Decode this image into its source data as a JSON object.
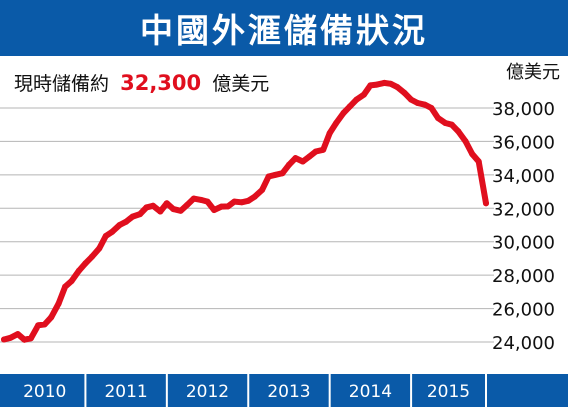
{
  "colors": {
    "title_bar": "#0a5aa8",
    "axis_bar": "#0a5aa8",
    "line": "#e00f1e",
    "highlight": "#e00f1e",
    "grid": "#b5b5b5"
  },
  "chart_data": {
    "type": "line",
    "title": "中國外滙儲備狀況",
    "subtitle": {
      "prefix": "現時儲備約",
      "value": "32,300",
      "suffix": "億美元"
    },
    "y_unit": "億美元",
    "ylim": [
      22500,
      40500
    ],
    "y_ticks": [
      "38,000",
      "36,000",
      "34,000",
      "32,000",
      "30,000",
      "28,000",
      "26,000",
      "24,000"
    ],
    "y_tick_values": [
      38000,
      36000,
      34000,
      32000,
      30000,
      28000,
      26000,
      24000
    ],
    "x_labels": [
      "2010",
      "2011",
      "2012",
      "2013",
      "2014",
      "2015"
    ],
    "x_range": [
      2010.0,
      2015.92
    ],
    "grid": "horizontal",
    "series": [
      {
        "x": [
          2010.0,
          2010.08,
          2010.17,
          2010.25,
          2010.33,
          2010.42,
          2010.5,
          2010.58,
          2010.67,
          2010.75,
          2010.83,
          2010.92,
          2011.0,
          2011.08,
          2011.17,
          2011.25,
          2011.33,
          2011.42,
          2011.5,
          2011.58,
          2011.67,
          2011.75,
          2011.83,
          2011.92,
          2012.0,
          2012.08,
          2012.17,
          2012.25,
          2012.33,
          2012.42,
          2012.5,
          2012.58,
          2012.67,
          2012.75,
          2012.83,
          2012.92,
          2013.0,
          2013.08,
          2013.17,
          2013.25,
          2013.33,
          2013.42,
          2013.5,
          2013.58,
          2013.67,
          2013.75,
          2013.83,
          2013.92,
          2014.0,
          2014.08,
          2014.17,
          2014.25,
          2014.33,
          2014.42,
          2014.5,
          2014.58,
          2014.67,
          2014.75,
          2014.83,
          2014.92,
          2015.0,
          2015.08,
          2015.17,
          2015.25,
          2015.33,
          2015.42,
          2015.5,
          2015.58,
          2015.67,
          2015.75,
          2015.83,
          2015.92
        ],
        "values": [
          24150,
          24250,
          24470,
          24140,
          24220,
          25000,
          25050,
          25480,
          26300,
          27300,
          27650,
          28260,
          28700,
          29100,
          29600,
          30340,
          30600,
          31000,
          31200,
          31500,
          31650,
          32050,
          32150,
          31810,
          32300,
          31950,
          31850,
          32200,
          32580,
          32500,
          32400,
          31900,
          32100,
          32110,
          32400,
          32360,
          32450,
          32700,
          33100,
          33900,
          34000,
          34100,
          34600,
          35000,
          34800,
          35090,
          35400,
          35500,
          36500,
          37100,
          37700,
          38100,
          38500,
          38800,
          39350,
          39400,
          39500,
          39450,
          39250,
          38900,
          38500,
          38300,
          38200,
          38000,
          37400,
          37100,
          37000,
          36600,
          36000,
          35250,
          34800,
          32300
        ]
      }
    ]
  }
}
